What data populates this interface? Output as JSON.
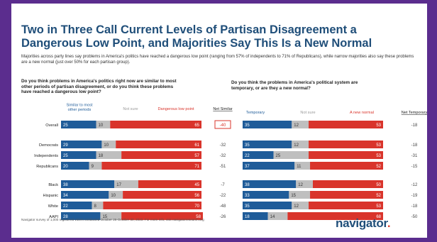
{
  "page": {
    "title": "Two in Three Call Current Levels of Partisan Disagreement a Dangerous Low Point, and Majorities Say This Is a New Normal",
    "subtitle": "Majorities across party lines say problems in America's politics have reached a dangerous low point (ranging from 57% of independents to 71% of Republicans), while narrow majorities also say these problems are a new normal (just over 50% for each partisan group).",
    "source": "Navigator survey of 1,000 registered voters conducted October 26-October 30, 2023. For more info, visit navigatorresearch.org",
    "logo_text": "navigator",
    "logo_dot": ".",
    "colors": {
      "background": "#5b2d8e",
      "title": "#1f4e79",
      "blue": "#1f5c99",
      "gray": "#bfbfbf",
      "red": "#d9342b"
    }
  },
  "chart_data": [
    {
      "type": "bar",
      "stacked": true,
      "orientation": "horizontal",
      "title": "Do you think problems in America's politics right now are similar to most other periods of partisan disagreement, or do you think these problems have reached a dangerous low point?",
      "series_labels": [
        "Similar to most other periods",
        "Not sure",
        "Dangerous low point"
      ],
      "net_label": "Net Similar",
      "rows": [
        {
          "label": "Overall",
          "values": [
            25,
            10,
            65
          ],
          "net": "-40",
          "net_boxed": true
        },
        {
          "label": "Democrats",
          "values": [
            29,
            10,
            61
          ],
          "net": "-32"
        },
        {
          "label": "Independents",
          "values": [
            25,
            18,
            57
          ],
          "net": "-32"
        },
        {
          "label": "Republicans",
          "values": [
            20,
            9,
            71
          ],
          "net": "-51"
        },
        {
          "label": "Black",
          "values": [
            38,
            17,
            45
          ],
          "net": "-7"
        },
        {
          "label": "Hispanic",
          "values": [
            34,
            10,
            56
          ],
          "net": "-22"
        },
        {
          "label": "White",
          "values": [
            22,
            8,
            70
          ],
          "net": "-48"
        },
        {
          "label": "AAPI",
          "values": [
            28,
            15,
            58
          ],
          "net": "-26"
        }
      ]
    },
    {
      "type": "bar",
      "stacked": true,
      "orientation": "horizontal",
      "title": "Do you think the problems in America's political system are temporary, or are they a new normal?",
      "series_labels": [
        "Temporary",
        "Not sure",
        "A new normal"
      ],
      "net_label": "Net Temporary",
      "rows": [
        {
          "label": "Overall",
          "values": [
            35,
            12,
            53
          ],
          "net": "-18"
        },
        {
          "label": "Democrats",
          "values": [
            35,
            12,
            53
          ],
          "net": "-18"
        },
        {
          "label": "Independents",
          "values": [
            22,
            25,
            53
          ],
          "net": "-31"
        },
        {
          "label": "Republicans",
          "values": [
            37,
            11,
            52
          ],
          "net": "-15"
        },
        {
          "label": "Black",
          "values": [
            38,
            12,
            50
          ],
          "net": "-12"
        },
        {
          "label": "Hispanic",
          "values": [
            33,
            15,
            52
          ],
          "net": "-19"
        },
        {
          "label": "White",
          "values": [
            35,
            12,
            53
          ],
          "net": "-18"
        },
        {
          "label": "AAPI",
          "values": [
            18,
            14,
            68
          ],
          "net": "-50"
        }
      ]
    }
  ]
}
